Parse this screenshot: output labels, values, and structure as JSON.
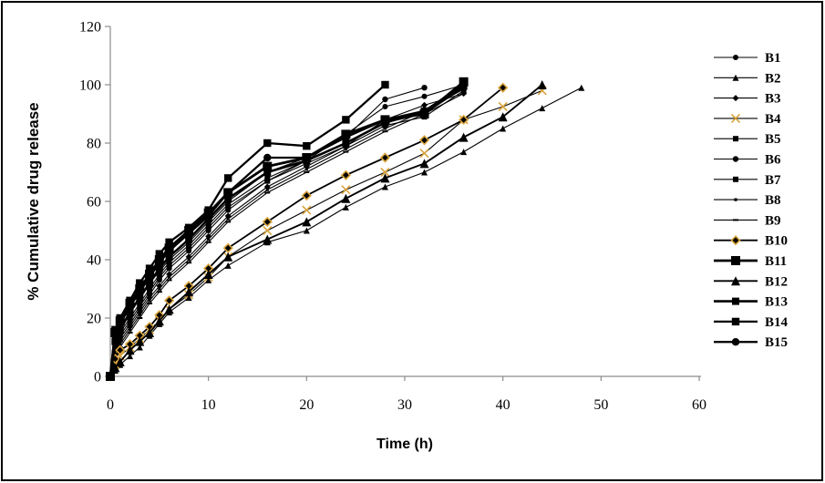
{
  "figure": {
    "background_color": "#ffffff",
    "border_color": "#000000",
    "axis_line_color": "#8c8c8c",
    "series_color": "#000000",
    "accent_color": "#d9a43c"
  },
  "chart_data": {
    "type": "line",
    "title": "",
    "xlabel": "Time (h)",
    "ylabel": "% Cumulative drug release",
    "xlim": [
      0,
      60
    ],
    "ylim": [
      0,
      120
    ],
    "x_ticks": [
      0,
      10,
      20,
      30,
      40,
      50,
      60
    ],
    "y_ticks": [
      0,
      20,
      40,
      60,
      80,
      100,
      120
    ],
    "grid": false,
    "legend_position": "right",
    "x": [
      0,
      0.5,
      1,
      2,
      3,
      4,
      5,
      6,
      8,
      10,
      12,
      16,
      20,
      24,
      28,
      32,
      36,
      40,
      44,
      48
    ],
    "series": [
      {
        "name": "B1",
        "marker": "circle",
        "marker_size": 3,
        "line_width": 1.1,
        "color": "#000000",
        "marker_color": "#000000",
        "values": [
          0,
          9,
          13,
          18,
          23,
          28,
          33,
          37,
          43,
          50,
          57,
          67,
          74,
          83,
          92.5,
          96,
          100
        ]
      },
      {
        "name": "B2",
        "marker": "triangle",
        "marker_size": 3.5,
        "line_width": 1.1,
        "color": "#000000",
        "marker_color": "#000000",
        "values": [
          0,
          2,
          4,
          7,
          10,
          14,
          18,
          22,
          27,
          33,
          38,
          46,
          50,
          58,
          65,
          70,
          77,
          85,
          92,
          99
        ]
      },
      {
        "name": "B3",
        "marker": "diamond",
        "marker_size": 3.5,
        "line_width": 1.1,
        "color": "#000000",
        "marker_color": "#000000",
        "values": [
          0,
          8,
          12,
          17,
          22,
          27,
          31,
          35,
          41,
          48,
          55,
          65,
          72,
          79,
          88,
          93,
          97
        ]
      },
      {
        "name": "B4",
        "marker": "x",
        "marker_size": 4.5,
        "line_width": 1.1,
        "color": "#000000",
        "marker_color": "#d9a43c",
        "values": [
          0,
          4,
          7,
          10,
          13,
          16,
          19,
          23,
          28,
          34,
          41,
          50,
          57,
          64,
          70,
          76.5,
          88,
          92.5,
          98
        ]
      },
      {
        "name": "B5",
        "marker": "square",
        "marker_size": 3,
        "line_width": 1.1,
        "color": "#000000",
        "marker_color": "#000000",
        "values": [
          0,
          11,
          15,
          20,
          25,
          30,
          35,
          39,
          45,
          52,
          59,
          68,
          74,
          80,
          87,
          90,
          99
        ]
      },
      {
        "name": "B6",
        "marker": "circle",
        "marker_size": 3.2,
        "line_width": 1.1,
        "color": "#000000",
        "marker_color": "#000000",
        "values": [
          0,
          13,
          17,
          22,
          27,
          32,
          36,
          40,
          46,
          53,
          60,
          70,
          75,
          82,
          95,
          99
        ]
      },
      {
        "name": "B7",
        "marker": "square",
        "marker_size": 3,
        "line_width": 1.1,
        "color": "#000000",
        "marker_color": "#000000",
        "values": [
          0,
          10,
          14,
          19,
          24,
          29,
          34,
          38,
          44,
          51,
          58,
          67,
          73,
          79,
          86,
          89,
          98
        ]
      },
      {
        "name": "B8",
        "marker": "square",
        "marker_size": 1.6,
        "line_width": 1.1,
        "color": "#000000",
        "marker_color": "#000000",
        "values": [
          0,
          7,
          11,
          16,
          21,
          26,
          30,
          34,
          40,
          47,
          54,
          64,
          71,
          78,
          85,
          91,
          98.5
        ]
      },
      {
        "name": "B9",
        "marker": "dash",
        "marker_size": 3,
        "line_width": 1.1,
        "color": "#000000",
        "marker_color": "#000000",
        "values": [
          0,
          6,
          10,
          15,
          20,
          25,
          29,
          33,
          39,
          46,
          53,
          63,
          70,
          77,
          84,
          90,
          97
        ]
      },
      {
        "name": "B10",
        "marker": "diamond",
        "marker_size": 4.5,
        "line_width": 1.8,
        "color": "#000000",
        "marker_color": "#000000",
        "marker_stroke": "#d9a43c",
        "values": [
          0,
          6,
          9,
          11,
          14,
          17,
          21,
          26,
          31,
          37,
          44,
          53,
          62,
          69,
          75,
          81,
          88,
          99
        ]
      },
      {
        "name": "B11",
        "marker": "square",
        "marker_size": 5,
        "line_width": 2.8,
        "color": "#000000",
        "marker_color": "#000000",
        "values": [
          0,
          15,
          19,
          25,
          30,
          35,
          40,
          44,
          50,
          56,
          63,
          72,
          75,
          83,
          88,
          90,
          101
        ]
      },
      {
        "name": "B12",
        "marker": "triangle",
        "marker_size": 5,
        "line_width": 1.9,
        "color": "#000000",
        "marker_color": "#000000",
        "values": [
          0,
          3,
          5,
          9,
          12,
          15,
          19,
          23,
          29,
          35,
          41,
          47,
          53,
          61,
          68,
          73,
          82,
          89,
          100
        ]
      },
      {
        "name": "B13",
        "marker": "square",
        "marker_size": 4,
        "line_width": 2.6,
        "color": "#000000",
        "marker_color": "#000000",
        "values": [
          0,
          12,
          16,
          22,
          27,
          32,
          37,
          41,
          47,
          54,
          61,
          70,
          74,
          80,
          87,
          91,
          99.5
        ]
      },
      {
        "name": "B14",
        "marker": "square",
        "marker_size": 4.2,
        "line_width": 2.3,
        "color": "#000000",
        "marker_color": "#000000",
        "values": [
          0,
          16,
          20,
          26,
          32,
          37,
          42,
          46,
          51,
          57,
          68,
          80,
          79,
          88,
          100
        ]
      },
      {
        "name": "B15",
        "marker": "circle",
        "marker_size": 4.2,
        "line_width": 2.3,
        "color": "#000000",
        "marker_color": "#000000",
        "values": [
          0,
          14,
          18,
          24,
          29,
          34,
          39,
          43,
          49,
          55,
          63,
          75,
          75,
          82,
          88,
          91,
          100
        ]
      }
    ]
  }
}
